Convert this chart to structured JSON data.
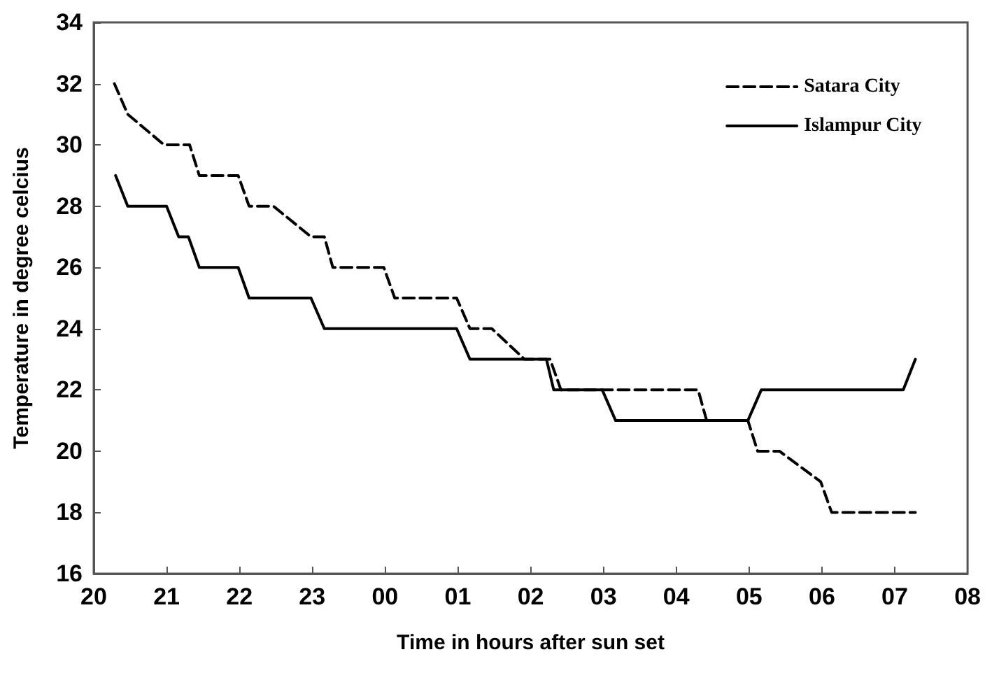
{
  "chart_data": {
    "type": "line",
    "xlabel": "Time in hours after sun set",
    "ylabel": "Temperature in degree celcius",
    "xlim": [
      "--01-01T20:00",
      "--01-02T08:00"
    ],
    "xticks": [
      {
        "value": "--01-01T20:00",
        "label": "20"
      },
      {
        "value": "--01-01T21:00",
        "label": "21"
      },
      {
        "value": "--01-01T22:00",
        "label": "22"
      },
      {
        "value": "--01-01T23:00",
        "label": "23"
      },
      {
        "value": "--01-02T00:00",
        "label": "00"
      },
      {
        "value": "--01-02T01:00",
        "label": "01"
      },
      {
        "value": "--01-02T02:00",
        "label": "02"
      },
      {
        "value": "--01-02T03:00",
        "label": "03"
      },
      {
        "value": "--01-02T04:00",
        "label": "04"
      },
      {
        "value": "--01-02T05:00",
        "label": "05"
      },
      {
        "value": "--01-02T06:00",
        "label": "06"
      },
      {
        "value": "--01-02T07:00",
        "label": "07"
      },
      {
        "value": "--01-02T08:00",
        "label": "08"
      }
    ],
    "ylim": [
      16,
      34
    ],
    "yticks": [
      16,
      18,
      20,
      22,
      24,
      26,
      28,
      30,
      32,
      34
    ],
    "grid": false,
    "legend": "top right",
    "marker": "none",
    "series": [
      {
        "name": "Satara City",
        "color": "#000000",
        "line_style": "dashed",
        "x": [
          "--01-01T20:17",
          "--01-01T20:28",
          "--01-01T20:58",
          "--01-01T21:19",
          "--01-01T21:27",
          "--01-01T21:59",
          "--01-01T22:08",
          "--01-01T22:28",
          "--01-01T22:59",
          "--01-01T23:10",
          "--01-01T23:17",
          "--01-01T23:59",
          "--01-02T00:08",
          "--01-02T00:59",
          "--01-02T01:10",
          "--01-02T01:28",
          "--01-02T01:55",
          "--01-02T02:16",
          "--01-02T02:25",
          "--01-02T04:18",
          "--01-02T04:25",
          "--01-02T04:59",
          "--01-02T05:07",
          "--01-02T05:25",
          "--01-02T05:59",
          "--01-02T06:08",
          "--01-02T07:17"
        ],
        "values": [
          32,
          31,
          30,
          30,
          29,
          29,
          28,
          28,
          27,
          27,
          26,
          26,
          25,
          25,
          24,
          24,
          23,
          23,
          22,
          22,
          21,
          21,
          20,
          20,
          19,
          18,
          18
        ]
      },
      {
        "name": "Islampur City",
        "color": "#000000",
        "line_style": "solid",
        "x": [
          "--01-01T20:18",
          "--01-01T20:28",
          "--01-01T21:00",
          "--01-01T21:10",
          "--01-01T21:18",
          "--01-01T21:27",
          "--01-01T21:59",
          "--01-01T22:08",
          "--01-01T22:59",
          "--01-01T23:10",
          "--01-02T00:59",
          "--01-02T01:10",
          "--01-02T02:13",
          "--01-02T02:19",
          "--01-02T02:59",
          "--01-02T03:10",
          "--01-02T04:59",
          "--01-02T05:10",
          "--01-02T07:07",
          "--01-02T07:17"
        ],
        "values": [
          29,
          28,
          28,
          27,
          27,
          26,
          26,
          25,
          25,
          24,
          24,
          23,
          23,
          22,
          22,
          21,
          21,
          22,
          22,
          23
        ]
      }
    ]
  }
}
